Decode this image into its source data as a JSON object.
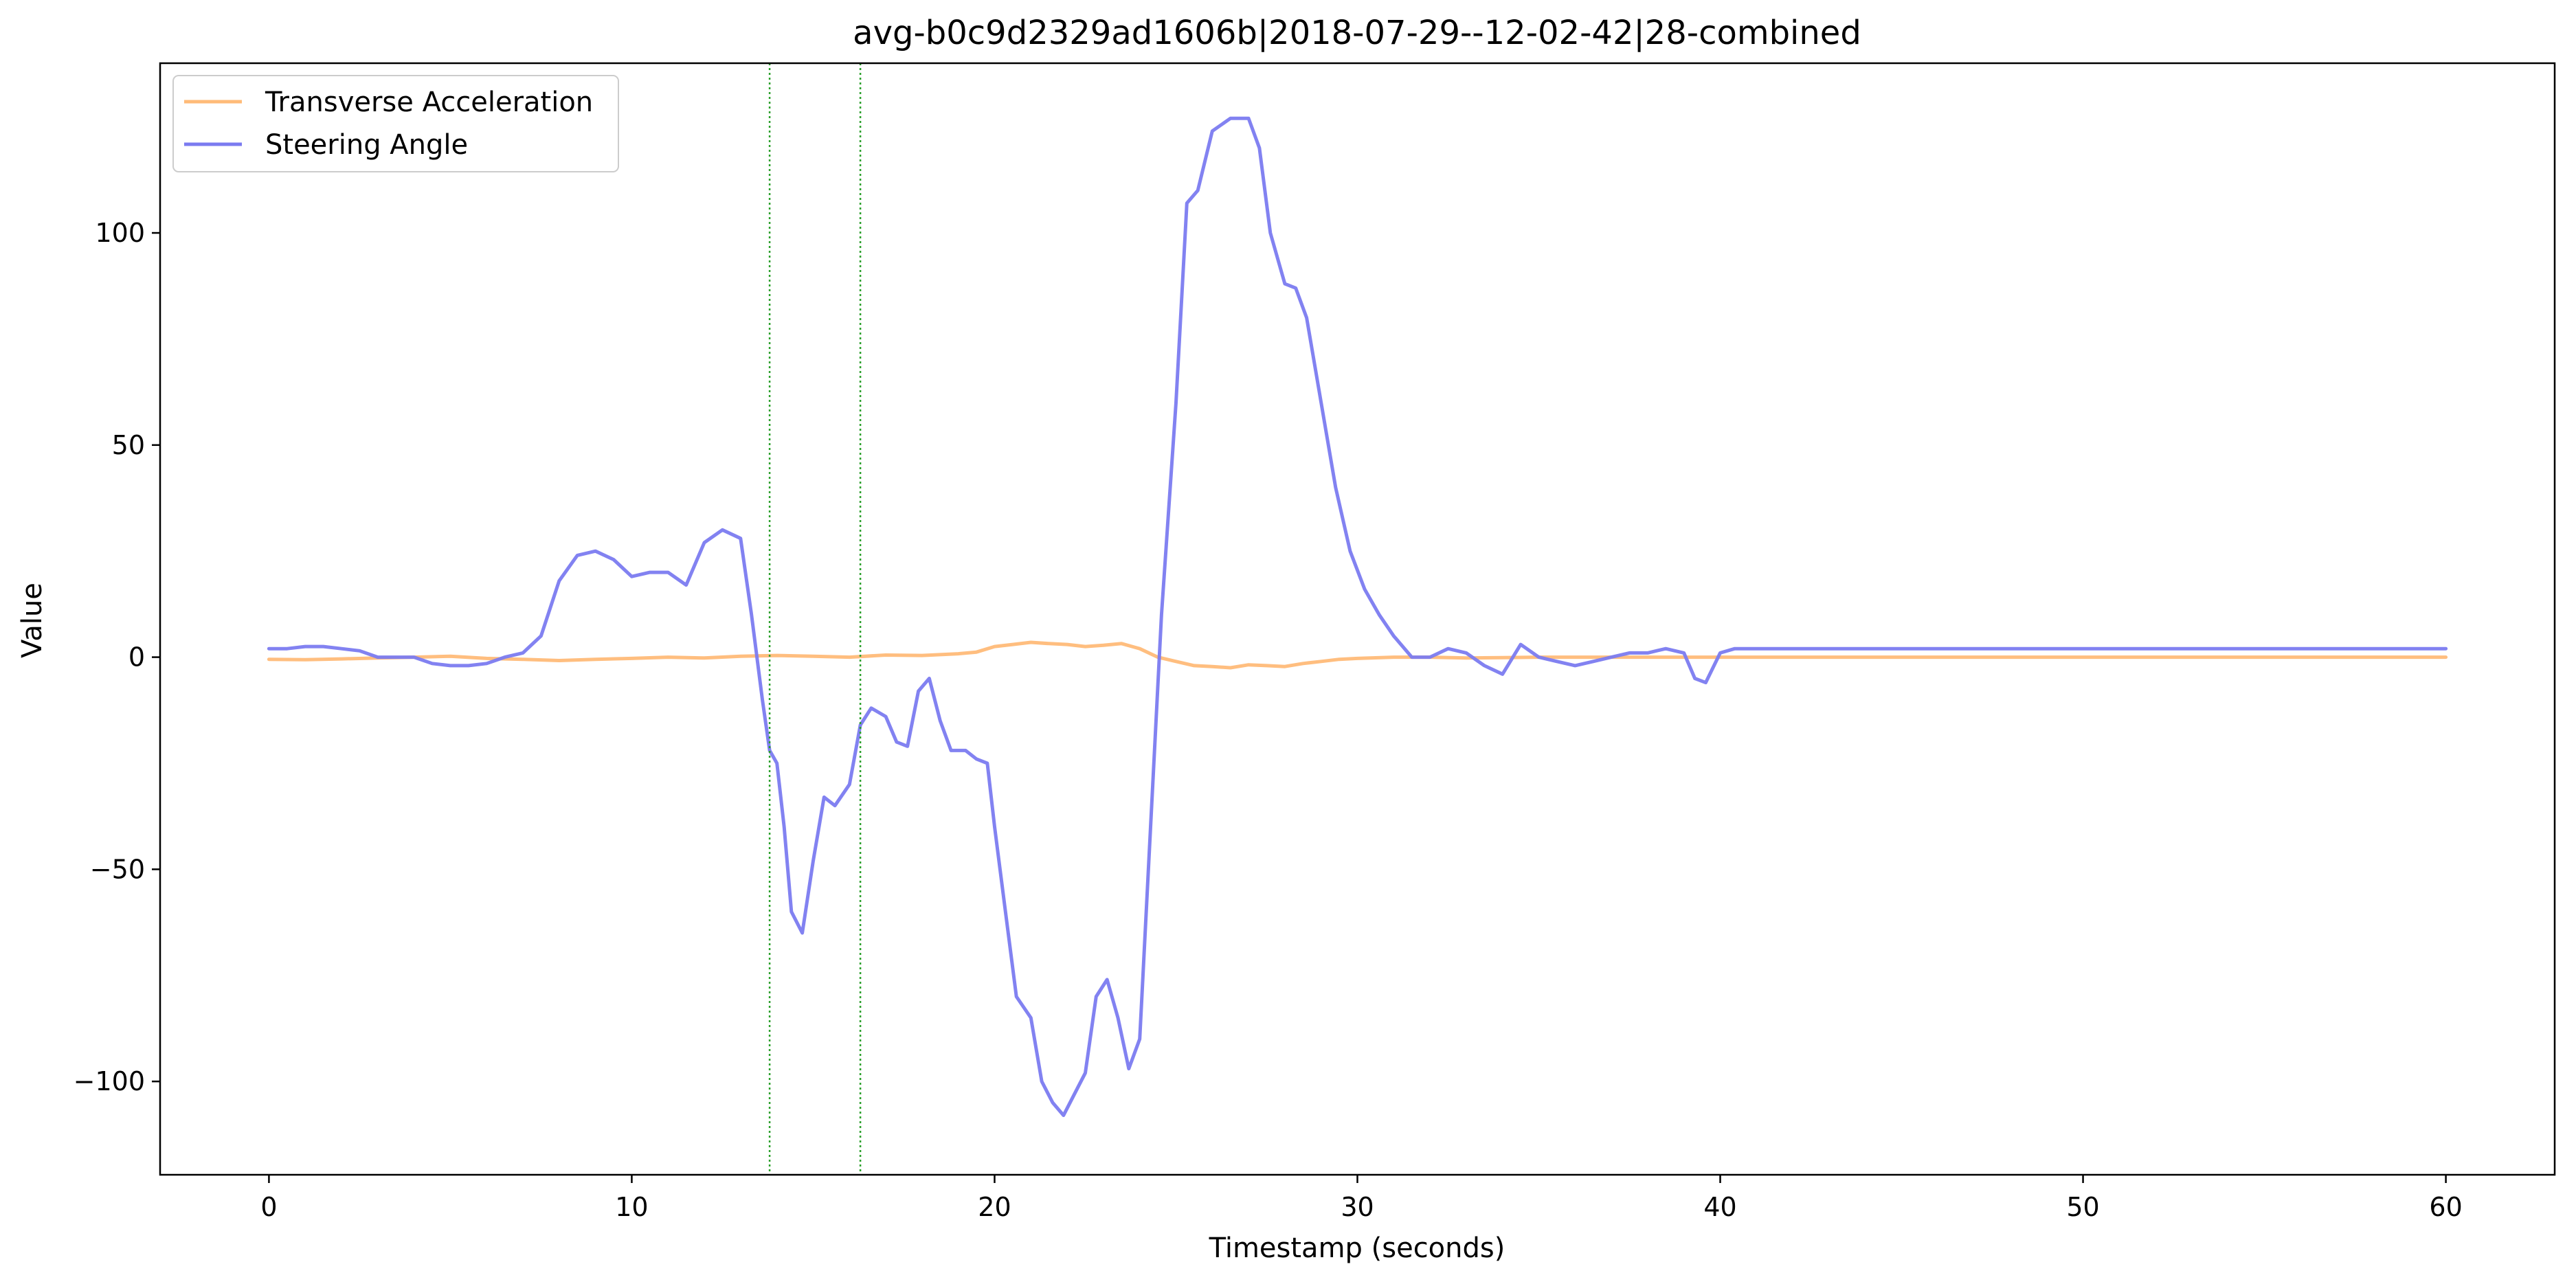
{
  "chart_data": {
    "type": "line",
    "title": "avg-b0c9d2329ad1606b|2018-07-29--12-02-42|28-combined",
    "xlabel": "Timestamp (seconds)",
    "ylabel": "Value",
    "xlim": [
      -3,
      63
    ],
    "ylim": [
      -122,
      140
    ],
    "xticks": [
      0,
      10,
      20,
      30,
      40,
      50,
      60
    ],
    "yticks": [
      -100,
      -50,
      0,
      50,
      100
    ],
    "grid": false,
    "legend_position": "top-left",
    "vlines": [
      {
        "x": 13.8,
        "color": "#2ca02c",
        "style": "dotted"
      },
      {
        "x": 16.3,
        "color": "#2ca02c",
        "style": "dotted"
      }
    ],
    "series": [
      {
        "name": "Transverse Acceleration",
        "color": "#ffbb78",
        "x": [
          0,
          1,
          2,
          3,
          4,
          5,
          6,
          7,
          8,
          9,
          10,
          11,
          12,
          13,
          14,
          15,
          16,
          17,
          18,
          19,
          19.5,
          20,
          20.5,
          21,
          21.5,
          22,
          22.5,
          23,
          23.5,
          24,
          24.5,
          25,
          25.5,
          26,
          26.5,
          27,
          27.5,
          28,
          28.5,
          29,
          29.5,
          30,
          31,
          32,
          33,
          34,
          35,
          36,
          37,
          38,
          39,
          40,
          45,
          50,
          55,
          60
        ],
        "values": [
          -0.5,
          -0.6,
          -0.4,
          -0.2,
          0,
          0.2,
          -0.3,
          -0.5,
          -0.8,
          -0.5,
          -0.3,
          0,
          -0.2,
          0.2,
          0.4,
          0.2,
          0,
          0.5,
          0.4,
          0.8,
          1.2,
          2.5,
          3,
          3.5,
          3.2,
          3,
          2.5,
          2.8,
          3.2,
          2,
          0,
          -1,
          -2,
          -2.2,
          -2.5,
          -1.8,
          -2,
          -2.2,
          -1.5,
          -1,
          -0.5,
          -0.3,
          0,
          0,
          -0.2,
          -0.1,
          0,
          0,
          0,
          0,
          0,
          0,
          0,
          0,
          0,
          0
        ]
      },
      {
        "name": "Steering Angle",
        "color": "#7b7bf0",
        "x": [
          0,
          0.5,
          1,
          1.5,
          2,
          2.5,
          3,
          3.5,
          4,
          4.5,
          5,
          5.5,
          6,
          6.5,
          7,
          7.5,
          8,
          8.5,
          9,
          9.5,
          10,
          10.5,
          11,
          11.5,
          12,
          12.5,
          13,
          13.3,
          13.6,
          13.8,
          14,
          14.2,
          14.4,
          14.7,
          15,
          15.3,
          15.6,
          16,
          16.3,
          16.6,
          17,
          17.3,
          17.6,
          17.9,
          18.2,
          18.5,
          18.8,
          19.2,
          19.5,
          19.8,
          20,
          20.3,
          20.6,
          21,
          21.3,
          21.6,
          21.9,
          22.2,
          22.5,
          22.8,
          23.1,
          23.4,
          23.7,
          24,
          24.3,
          24.6,
          25,
          25.3,
          25.6,
          26,
          26.5,
          27,
          27.3,
          27.6,
          28,
          28.3,
          28.6,
          29,
          29.4,
          29.8,
          30.2,
          30.6,
          31,
          31.5,
          32,
          32.5,
          33,
          33.5,
          34,
          34.5,
          35,
          35.5,
          36,
          36.5,
          37,
          37.5,
          38,
          38.5,
          39,
          39.3,
          39.6,
          40,
          40.4,
          41,
          45,
          50,
          55,
          60
        ],
        "values": [
          2,
          2,
          2.5,
          2.5,
          2,
          1.5,
          0,
          0,
          0,
          -1.5,
          -2,
          -2,
          -1.5,
          0,
          1,
          5,
          18,
          24,
          25,
          23,
          19,
          20,
          20,
          17,
          27,
          30,
          28,
          10,
          -10,
          -22,
          -25,
          -40,
          -60,
          -65,
          -48,
          -33,
          -35,
          -30,
          -16,
          -12,
          -14,
          -20,
          -21,
          -8,
          -5,
          -15,
          -22,
          -22,
          -24,
          -25,
          -40,
          -60,
          -80,
          -85,
          -100,
          -105,
          -108,
          -103,
          -98,
          -80,
          -76,
          -85,
          -97,
          -90,
          -40,
          10,
          60,
          107,
          110,
          124,
          127,
          127,
          120,
          100,
          88,
          87,
          80,
          60,
          40,
          25,
          16,
          10,
          5,
          0,
          0,
          2,
          1,
          -2,
          -4,
          3,
          0,
          -1,
          -2,
          -1,
          0,
          1,
          1,
          2,
          1,
          -5,
          -6,
          1,
          2,
          2,
          2,
          2,
          2,
          2
        ]
      }
    ]
  }
}
